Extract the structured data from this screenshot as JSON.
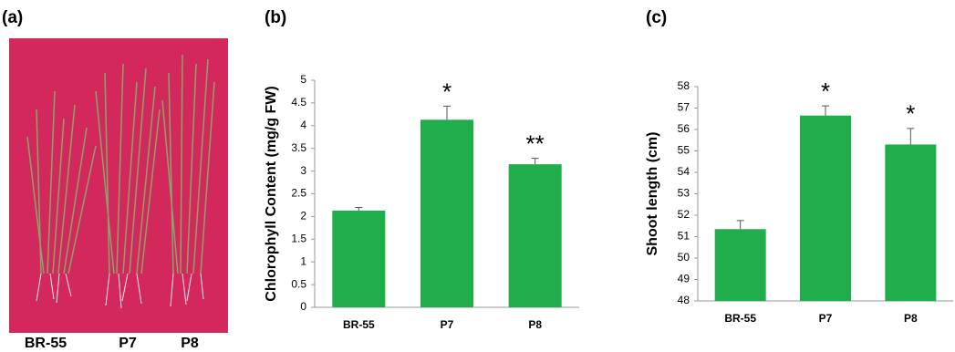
{
  "photo": {
    "label": "(a)",
    "captions": [
      "BR-55",
      "P7",
      "P8"
    ]
  },
  "chart_data": [
    {
      "type": "bar",
      "panel_label": "(b)",
      "y_label": "Chlorophyll Content (mg/g FW)",
      "categories": [
        "BR-55",
        "P7",
        "P8"
      ],
      "values": [
        2.13,
        4.13,
        3.15
      ],
      "errors": [
        0.07,
        0.3,
        0.13
      ],
      "annotations": [
        null,
        "*",
        "**"
      ],
      "color": "#1fae4b",
      "ylim": [
        0,
        5
      ],
      "yticks": [
        0,
        0.5,
        1,
        1.5,
        2,
        2.5,
        3,
        3.5,
        4,
        4.5,
        5
      ],
      "grid": false
    },
    {
      "type": "bar",
      "panel_label": "(c)",
      "y_label": "Shoot length (cm)",
      "categories": [
        "BR-55",
        "P7",
        "P8"
      ],
      "values": [
        51.35,
        56.65,
        55.3
      ],
      "errors": [
        0.4,
        0.45,
        0.75
      ],
      "annotations": [
        null,
        "*",
        "*"
      ],
      "color": "#1fae4b",
      "ylim": [
        48,
        58
      ],
      "yticks": [
        48,
        49,
        50,
        51,
        52,
        53,
        54,
        55,
        56,
        57,
        58
      ],
      "grid": false
    }
  ]
}
